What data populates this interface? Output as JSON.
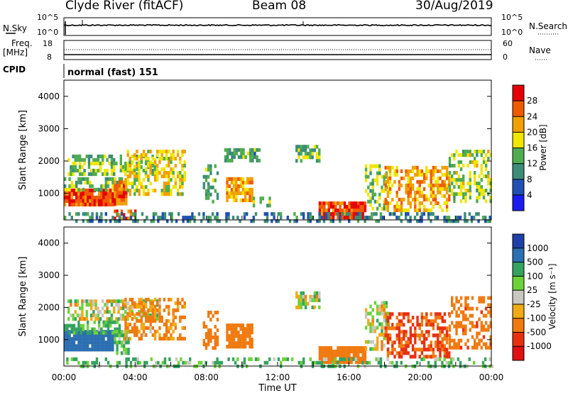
{
  "header": {
    "title": "Clyde River (fitACF)",
    "beam": "Beam 08",
    "date": "30/Aug/2019"
  },
  "top_panels": {
    "nsky": {
      "left_label": "N.Sky",
      "right_label": "N.Search",
      "left_ticks": [
        "10^5",
        "10^0"
      ],
      "right_ticks": [
        "10^5",
        "10^0"
      ]
    },
    "freq": {
      "left_label": "Freq.",
      "unit": "[MHz]",
      "right_label": "Nave",
      "left_ticks": [
        "18",
        "8"
      ],
      "right_ticks": [
        "60",
        "0"
      ]
    },
    "cpid": {
      "label": "CPID",
      "text": "normal (fast) 151"
    }
  },
  "chart_data": [
    {
      "type": "heatmap",
      "title": "",
      "ylabel": "Slant Range [km]",
      "yticks": [
        1000,
        2000,
        3000,
        4000
      ],
      "ylim": [
        180,
        4500
      ],
      "xlim": [
        0,
        24
      ],
      "colorbar": {
        "label": "Power [dB]",
        "ticks": [
          4,
          8,
          12,
          16,
          20,
          24,
          28
        ],
        "range": [
          0,
          32
        ]
      },
      "regions": [
        {
          "t": [
            0,
            2.9
          ],
          "r": [
            650,
            1150
          ],
          "value": 27,
          "density": 0.95
        },
        {
          "t": [
            0,
            3.2
          ],
          "r": [
            1150,
            1500
          ],
          "value": 14,
          "density": 0.6
        },
        {
          "t": [
            0.2,
            5.3
          ],
          "r": [
            1550,
            2200
          ],
          "value": 15,
          "density": 0.55
        },
        {
          "t": [
            2.8,
            3.5
          ],
          "r": [
            650,
            1400
          ],
          "value": 25,
          "density": 0.9
        },
        {
          "t": [
            3.4,
            6.8
          ],
          "r": [
            1000,
            2350
          ],
          "value": 19,
          "density": 0.5
        },
        {
          "t": [
            2.8,
            4.0
          ],
          "r": [
            250,
            500
          ],
          "value": 25,
          "density": 0.7
        },
        {
          "t": [
            7.8,
            8.6
          ],
          "r": [
            700,
            1900
          ],
          "value": 13,
          "density": 0.5
        },
        {
          "t": [
            9.1,
            10.6
          ],
          "r": [
            750,
            1500
          ],
          "value": 22,
          "density": 0.85
        },
        {
          "t": [
            9.0,
            11.0
          ],
          "r": [
            2050,
            2400
          ],
          "value": 12,
          "density": 0.6
        },
        {
          "t": [
            10.6,
            11.6
          ],
          "r": [
            650,
            900
          ],
          "value": 14,
          "density": 0.6
        },
        {
          "t": [
            13.0,
            14.3
          ],
          "r": [
            2000,
            2500
          ],
          "value": 13,
          "density": 0.7
        },
        {
          "t": [
            14.3,
            16.9
          ],
          "r": [
            300,
            750
          ],
          "value": 27,
          "density": 0.95
        },
        {
          "t": [
            16.9,
            18.3
          ],
          "r": [
            500,
            1900
          ],
          "value": 15,
          "density": 0.45
        },
        {
          "t": [
            18.0,
            21.6
          ],
          "r": [
            450,
            1850
          ],
          "value": 22,
          "density": 0.55
        },
        {
          "t": [
            21.6,
            24.0
          ],
          "r": [
            800,
            2350
          ],
          "value": 16,
          "density": 0.5
        },
        {
          "t": [
            0,
            24.0
          ],
          "r": [
            180,
            420
          ],
          "value": 9,
          "density": 0.35
        }
      ]
    },
    {
      "type": "heatmap",
      "title": "",
      "ylabel": "Slant Range [km]",
      "xlabel": "Time UT",
      "xticks": [
        "00:00",
        "04:00",
        "08:00",
        "12:00",
        "16:00",
        "20:00",
        "00:00"
      ],
      "yticks": [
        1000,
        2000,
        3000,
        4000
      ],
      "ylim": [
        180,
        4500
      ],
      "xlim": [
        0,
        24
      ],
      "colorbar": {
        "label": "Velocity [m s⁻¹]",
        "ticks": [
          "1000",
          "500",
          "100",
          "25",
          "-25",
          "-100",
          "-500",
          "-1000"
        ]
      },
      "regions": [
        {
          "t": [
            0,
            2.8
          ],
          "r": [
            650,
            1300
          ],
          "value": 700,
          "density": 0.95
        },
        {
          "t": [
            0,
            3.2
          ],
          "r": [
            1200,
            1600
          ],
          "value": 150,
          "density": 0.55
        },
        {
          "t": [
            0.2,
            5.3
          ],
          "r": [
            1650,
            2250
          ],
          "value": 0,
          "density": 0.6
        },
        {
          "t": [
            2.8,
            3.6
          ],
          "r": [
            600,
            1300
          ],
          "value": 120,
          "density": 0.8
        },
        {
          "t": [
            3.4,
            6.8
          ],
          "r": [
            1000,
            2300
          ],
          "value": -150,
          "density": 0.5
        },
        {
          "t": [
            7.8,
            8.6
          ],
          "r": [
            700,
            1900
          ],
          "value": -300,
          "density": 0.5
        },
        {
          "t": [
            9.1,
            10.6
          ],
          "r": [
            800,
            1500
          ],
          "value": -300,
          "density": 0.85
        },
        {
          "t": [
            13.0,
            14.3
          ],
          "r": [
            2000,
            2500
          ],
          "value": 0,
          "density": 0.7
        },
        {
          "t": [
            14.3,
            16.9
          ],
          "r": [
            280,
            800
          ],
          "value": -300,
          "density": 0.95
        },
        {
          "t": [
            16.9,
            18.3
          ],
          "r": [
            700,
            2200
          ],
          "value": 0,
          "density": 0.45
        },
        {
          "t": [
            18.0,
            21.6
          ],
          "r": [
            450,
            1850
          ],
          "value": -500,
          "density": 0.55
        },
        {
          "t": [
            21.6,
            24.0
          ],
          "r": [
            800,
            2350
          ],
          "value": -400,
          "density": 0.5
        },
        {
          "t": [
            0,
            24.0
          ],
          "r": [
            180,
            450
          ],
          "value": 120,
          "density": 0.35
        }
      ]
    }
  ]
}
